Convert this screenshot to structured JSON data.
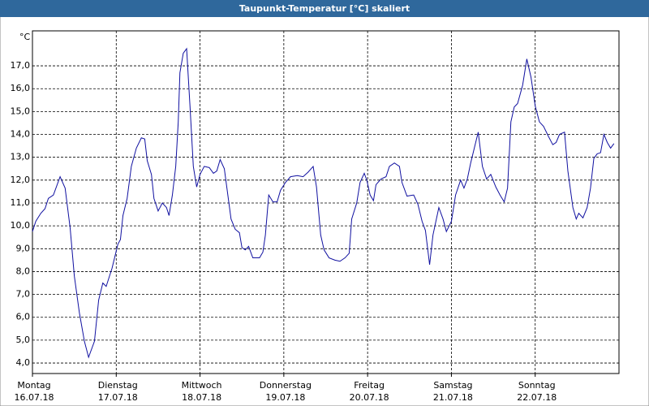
{
  "chart_data": {
    "type": "line",
    "title": "Taupunkt-Temperatur [°C] skaliert",
    "y_unit": "°C",
    "color": "#1010a0",
    "grid": true,
    "xlim": [
      0,
      7
    ],
    "ylim": [
      3.54,
      18.53
    ],
    "xticks": [
      {
        "value": 0,
        "label": "Montag"
      },
      {
        "value": 1,
        "label": "Dienstag"
      },
      {
        "value": 2,
        "label": "Mittwoch"
      },
      {
        "value": 3,
        "label": "Donnerstag"
      },
      {
        "value": 4,
        "label": "Freitag"
      },
      {
        "value": 5,
        "label": "Samstag"
      },
      {
        "value": 6,
        "label": "Sonntag"
      }
    ],
    "xtick_dates": [
      "16.07.18",
      "17.07.18",
      "18.07.18",
      "19.07.18",
      "20.07.18",
      "21.07.18",
      "22.07.18"
    ],
    "yticks": [
      {
        "value": 4,
        "label": "4,0"
      },
      {
        "value": 5,
        "label": "5,0"
      },
      {
        "value": 6,
        "label": "6,0"
      },
      {
        "value": 7,
        "label": "7,0"
      },
      {
        "value": 8,
        "label": "8,0"
      },
      {
        "value": 9,
        "label": "9,0"
      },
      {
        "value": 10,
        "label": "10,0"
      },
      {
        "value": 11,
        "label": "11,0"
      },
      {
        "value": 12,
        "label": "12,0"
      },
      {
        "value": 13,
        "label": "13,0"
      },
      {
        "value": 14,
        "label": "14,0"
      },
      {
        "value": 15,
        "label": "15,0"
      },
      {
        "value": 16,
        "label": "16,0"
      },
      {
        "value": 17,
        "label": "17,0"
      }
    ],
    "x": [
      0,
      0.04,
      0.1,
      0.15,
      0.19,
      0.25,
      0.33,
      0.39,
      0.45,
      0.5,
      0.56,
      0.62,
      0.67,
      0.74,
      0.79,
      0.84,
      0.88,
      0.95,
      1.02,
      1.05,
      1.08,
      1.13,
      1.18,
      1.24,
      1.3,
      1.34,
      1.37,
      1.42,
      1.45,
      1.5,
      1.55,
      1.6,
      1.63,
      1.67,
      1.71,
      1.74,
      1.76,
      1.8,
      1.84,
      1.88,
      1.92,
      1.96,
      2.0,
      2.05,
      2.11,
      2.16,
      2.2,
      2.24,
      2.29,
      2.37,
      2.42,
      2.47,
      2.5,
      2.54,
      2.58,
      2.63,
      2.71,
      2.75,
      2.78,
      2.82,
      2.87,
      2.92,
      2.96,
      3.02,
      3.08,
      3.16,
      3.23,
      3.29,
      3.35,
      3.39,
      3.44,
      3.48,
      3.54,
      3.61,
      3.67,
      3.73,
      3.78,
      3.81,
      3.87,
      3.91,
      3.96,
      3.99,
      4.03,
      4.07,
      4.1,
      4.16,
      4.22,
      4.26,
      4.32,
      4.38,
      4.41,
      4.47,
      4.55,
      4.6,
      4.65,
      4.69,
      4.74,
      4.78,
      4.85,
      4.9,
      4.94,
      5.0,
      5.05,
      5.11,
      5.15,
      5.19,
      5.23,
      5.29,
      5.32,
      5.37,
      5.42,
      5.47,
      5.53,
      5.58,
      5.63,
      5.67,
      5.71,
      5.75,
      5.79,
      5.85,
      5.9,
      5.95,
      6.0,
      6.05,
      6.1,
      6.16,
      6.21,
      6.25,
      6.29,
      6.35,
      6.39,
      6.45,
      6.49,
      6.52,
      6.57,
      6.62,
      6.66,
      6.7,
      6.74,
      6.78,
      6.82,
      6.86,
      6.9,
      6.94
    ],
    "values": [
      9.75,
      10.2,
      10.55,
      10.75,
      11.2,
      11.35,
      12.15,
      11.65,
      9.9,
      7.8,
      6.2,
      4.95,
      4.25,
      4.95,
      6.75,
      7.5,
      7.35,
      8.15,
      9.2,
      9.4,
      10.45,
      11.2,
      12.6,
      13.4,
      13.85,
      13.8,
      12.85,
      12.25,
      11.2,
      10.65,
      11.0,
      10.8,
      10.45,
      11.35,
      12.6,
      14.55,
      16.7,
      17.55,
      17.75,
      15.25,
      12.6,
      11.7,
      12.25,
      12.6,
      12.55,
      12.3,
      12.4,
      12.9,
      12.5,
      10.3,
      9.85,
      9.7,
      9.05,
      8.95,
      9.1,
      8.6,
      8.6,
      8.85,
      9.6,
      11.35,
      11.05,
      11.05,
      11.55,
      11.9,
      12.15,
      12.2,
      12.15,
      12.35,
      12.6,
      11.7,
      9.6,
      8.95,
      8.6,
      8.5,
      8.45,
      8.6,
      8.8,
      10.3,
      11.0,
      11.9,
      12.3,
      12.0,
      11.35,
      11.1,
      11.8,
      12.05,
      12.15,
      12.6,
      12.75,
      12.6,
      11.9,
      11.3,
      11.35,
      10.95,
      10.2,
      9.8,
      8.3,
      9.6,
      10.8,
      10.3,
      9.75,
      10.2,
      11.35,
      12.0,
      11.65,
      12.05,
      12.75,
      13.65,
      14.1,
      12.6,
      12.05,
      12.25,
      11.7,
      11.35,
      11.05,
      11.65,
      14.55,
      15.2,
      15.35,
      16.15,
      17.3,
      16.5,
      15.25,
      14.55,
      14.35,
      13.9,
      13.55,
      13.65,
      14.0,
      14.1,
      12.4,
      10.8,
      10.3,
      10.55,
      10.35,
      10.8,
      11.65,
      12.95,
      13.15,
      13.2,
      14.0,
      13.65,
      13.4,
      13.6
    ]
  }
}
